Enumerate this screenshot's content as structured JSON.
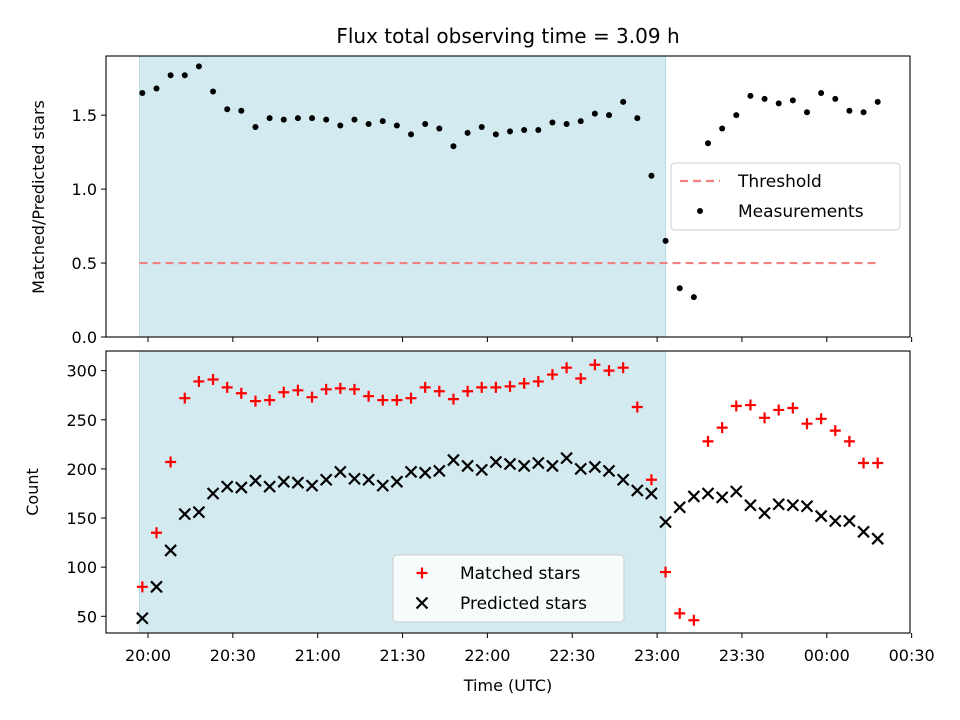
{
  "title": "Flux total observing time = 3.09 h",
  "chart_data": [
    {
      "type": "scatter",
      "ylabel": "Matched/Predicted stars",
      "ylim": [
        0,
        1.9
      ],
      "yticks": [
        "0.0",
        "0.5",
        "1.0",
        "1.5"
      ],
      "shaded_region": {
        "start": "19:57",
        "end": "23:03",
        "color": "#d3eaf0"
      },
      "threshold": {
        "name": "Threshold",
        "start": "19:57",
        "end": "00:18",
        "value": 0.5,
        "color": "#f08080"
      },
      "legend": {
        "placement": "center-right",
        "entries": [
          "Threshold",
          "Measurements"
        ]
      },
      "series": [
        {
          "name": "Measurements",
          "marker": "dot",
          "color": "#000000",
          "x": [
            "19:58",
            "20:03",
            "20:08",
            "20:13",
            "20:18",
            "20:23",
            "20:28",
            "20:33",
            "20:38",
            "20:43",
            "20:48",
            "20:53",
            "20:58",
            "21:03",
            "21:08",
            "21:13",
            "21:18",
            "21:23",
            "21:28",
            "21:33",
            "21:38",
            "21:43",
            "21:48",
            "21:53",
            "21:58",
            "22:03",
            "22:08",
            "22:13",
            "22:18",
            "22:23",
            "22:28",
            "22:33",
            "22:38",
            "22:43",
            "22:48",
            "22:53",
            "22:58",
            "23:03",
            "23:08",
            "23:13",
            "23:18",
            "23:23",
            "23:28",
            "23:33",
            "23:38",
            "23:43",
            "23:48",
            "23:53",
            "23:58",
            "00:03",
            "00:08",
            "00:13",
            "00:18"
          ],
          "y": [
            1.65,
            1.68,
            1.77,
            1.77,
            1.83,
            1.66,
            1.54,
            1.53,
            1.42,
            1.48,
            1.47,
            1.48,
            1.48,
            1.47,
            1.43,
            1.47,
            1.44,
            1.46,
            1.43,
            1.37,
            1.44,
            1.41,
            1.29,
            1.38,
            1.42,
            1.37,
            1.39,
            1.4,
            1.4,
            1.45,
            1.44,
            1.46,
            1.51,
            1.5,
            1.59,
            1.48,
            1.09,
            0.65,
            0.33,
            0.27,
            1.31,
            1.41,
            1.5,
            1.63,
            1.61,
            1.58,
            1.6,
            1.52,
            1.65,
            1.61,
            1.53,
            1.52,
            1.59
          ]
        }
      ]
    },
    {
      "type": "scatter",
      "xlabel": "Time (UTC)",
      "ylabel": "Count",
      "ylim": [
        33,
        320
      ],
      "yticks": [
        "50",
        "100",
        "150",
        "200",
        "250",
        "300"
      ],
      "xticks": [
        "20:00",
        "20:30",
        "21:00",
        "21:30",
        "22:00",
        "22:30",
        "23:00",
        "23:30",
        "00:00",
        "00:30"
      ],
      "shaded_region": {
        "start": "19:57",
        "end": "23:03",
        "color": "#d3eaf0"
      },
      "legend": {
        "placement": "bottom-center",
        "entries": [
          "Matched stars",
          "Predicted stars"
        ]
      },
      "series": [
        {
          "name": "Matched stars",
          "marker": "plus",
          "color": "#ff0000",
          "x": [
            "19:58",
            "20:03",
            "20:08",
            "20:13",
            "20:18",
            "20:23",
            "20:28",
            "20:33",
            "20:38",
            "20:43",
            "20:48",
            "20:53",
            "20:58",
            "21:03",
            "21:08",
            "21:13",
            "21:18",
            "21:23",
            "21:28",
            "21:33",
            "21:38",
            "21:43",
            "21:48",
            "21:53",
            "21:58",
            "22:03",
            "22:08",
            "22:13",
            "22:18",
            "22:23",
            "22:28",
            "22:33",
            "22:38",
            "22:43",
            "22:48",
            "22:53",
            "22:58",
            "23:03",
            "23:08",
            "23:13",
            "23:18",
            "23:23",
            "23:28",
            "23:33",
            "23:38",
            "23:43",
            "23:48",
            "23:53",
            "23:58",
            "00:03",
            "00:08",
            "00:13",
            "00:18"
          ],
          "y": [
            80,
            135,
            207,
            272,
            289,
            291,
            283,
            277,
            269,
            270,
            278,
            280,
            273,
            281,
            282,
            281,
            274,
            270,
            270,
            272,
            283,
            279,
            271,
            279,
            283,
            283,
            284,
            287,
            289,
            296,
            303,
            292,
            306,
            300,
            303,
            263,
            189,
            95,
            53,
            46,
            228,
            242,
            264,
            265,
            252,
            260,
            262,
            246,
            251,
            239,
            228,
            206,
            206
          ]
        },
        {
          "name": "Predicted stars",
          "marker": "x",
          "color": "#000000",
          "x": [
            "19:58",
            "20:03",
            "20:08",
            "20:13",
            "20:18",
            "20:23",
            "20:28",
            "20:33",
            "20:38",
            "20:43",
            "20:48",
            "20:53",
            "20:58",
            "21:03",
            "21:08",
            "21:13",
            "21:18",
            "21:23",
            "21:28",
            "21:33",
            "21:38",
            "21:43",
            "21:48",
            "21:53",
            "21:58",
            "22:03",
            "22:08",
            "22:13",
            "22:18",
            "22:23",
            "22:28",
            "22:33",
            "22:38",
            "22:43",
            "22:48",
            "22:53",
            "22:58",
            "23:03",
            "23:08",
            "23:13",
            "23:18",
            "23:23",
            "23:28",
            "23:33",
            "23:38",
            "23:43",
            "23:48",
            "23:53",
            "23:58",
            "00:03",
            "00:08",
            "00:13",
            "00:18"
          ],
          "y": [
            48,
            80,
            117,
            154,
            156,
            175,
            182,
            181,
            188,
            182,
            187,
            186,
            183,
            189,
            197,
            190,
            189,
            183,
            187,
            197,
            196,
            198,
            209,
            203,
            199,
            207,
            205,
            203,
            206,
            203,
            211,
            200,
            202,
            198,
            189,
            178,
            175,
            146,
            161,
            172,
            175,
            171,
            177,
            163,
            155,
            164,
            163,
            162,
            152,
            147,
            147,
            136,
            129
          ]
        }
      ]
    }
  ]
}
